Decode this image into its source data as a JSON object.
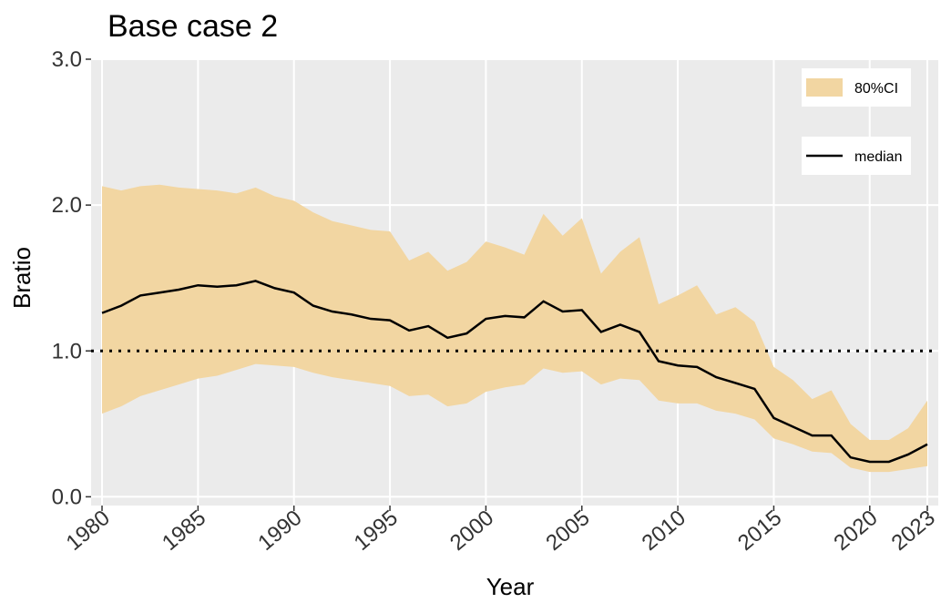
{
  "chart_data": {
    "type": "line",
    "title": "Base case 2",
    "xlabel": "Year",
    "ylabel": "Bratio",
    "x": [
      1980,
      1981,
      1982,
      1983,
      1984,
      1985,
      1986,
      1987,
      1988,
      1989,
      1990,
      1991,
      1992,
      1993,
      1994,
      1995,
      1996,
      1997,
      1998,
      1999,
      2000,
      2001,
      2002,
      2003,
      2004,
      2005,
      2006,
      2007,
      2008,
      2009,
      2010,
      2011,
      2012,
      2013,
      2014,
      2015,
      2016,
      2017,
      2018,
      2019,
      2020,
      2021,
      2022,
      2023
    ],
    "series": [
      {
        "name": "median",
        "color": "#000000",
        "values": [
          1.26,
          1.31,
          1.38,
          1.4,
          1.42,
          1.45,
          1.44,
          1.45,
          1.48,
          1.43,
          1.4,
          1.31,
          1.27,
          1.25,
          1.22,
          1.21,
          1.14,
          1.17,
          1.09,
          1.12,
          1.22,
          1.24,
          1.23,
          1.34,
          1.27,
          1.28,
          1.13,
          1.18,
          1.13,
          0.93,
          0.9,
          0.89,
          0.82,
          0.78,
          0.74,
          0.54,
          0.48,
          0.42,
          0.42,
          0.27,
          0.24,
          0.24,
          0.29,
          0.36
        ]
      }
    ],
    "band": {
      "name": "80%CI",
      "color": "#f2d6a2",
      "upper": [
        2.13,
        2.1,
        2.13,
        2.14,
        2.12,
        2.11,
        2.1,
        2.08,
        2.12,
        2.06,
        2.03,
        1.95,
        1.89,
        1.86,
        1.83,
        1.82,
        1.62,
        1.68,
        1.55,
        1.61,
        1.75,
        1.71,
        1.66,
        1.94,
        1.79,
        1.91,
        1.53,
        1.68,
        1.78,
        1.32,
        1.38,
        1.45,
        1.25,
        1.3,
        1.2,
        0.89,
        0.8,
        0.67,
        0.73,
        0.5,
        0.39,
        0.39,
        0.47,
        0.66
      ],
      "lower": [
        0.57,
        0.62,
        0.69,
        0.73,
        0.77,
        0.81,
        0.83,
        0.87,
        0.91,
        0.9,
        0.89,
        0.85,
        0.82,
        0.8,
        0.78,
        0.76,
        0.69,
        0.7,
        0.62,
        0.64,
        0.72,
        0.75,
        0.77,
        0.88,
        0.85,
        0.86,
        0.77,
        0.81,
        0.8,
        0.66,
        0.64,
        0.64,
        0.59,
        0.57,
        0.53,
        0.4,
        0.36,
        0.31,
        0.3,
        0.2,
        0.17,
        0.17,
        0.19,
        0.21
      ]
    },
    "hline": 1,
    "xlim": [
      1979.43,
      2023.57
    ],
    "ylim": [
      -0.06,
      3.0
    ],
    "xticks": [
      1980,
      1985,
      1990,
      1995,
      2000,
      2005,
      2010,
      2015,
      2020,
      2023
    ],
    "yticks": [
      {
        "value": 0,
        "label": "0.0"
      },
      {
        "value": 1,
        "label": "1.0"
      },
      {
        "value": 2,
        "label": "2.0"
      },
      {
        "value": 3,
        "label": "3.0"
      }
    ],
    "grid": true,
    "legend": "top-right"
  }
}
